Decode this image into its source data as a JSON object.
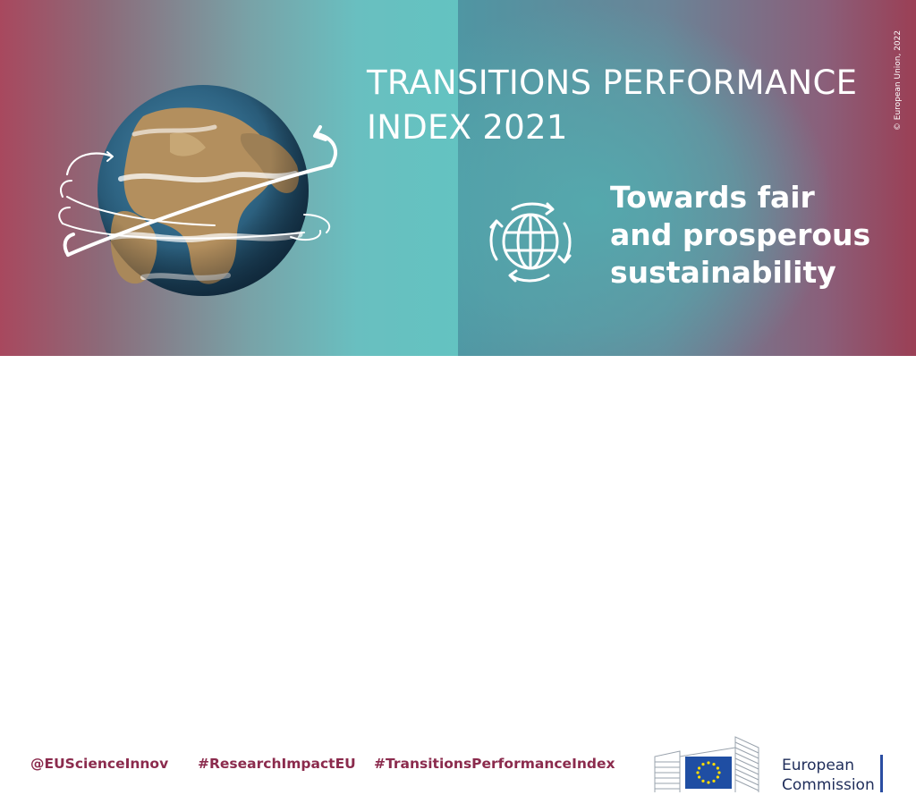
{
  "title": {
    "line1": "TRANSITIONS PERFORMANCE",
    "line2": "INDEX 2021"
  },
  "tagline": {
    "line1": "Towards fair",
    "line2": "and prosperous",
    "line3": "sustainability"
  },
  "copyright": "© European Union, 2022",
  "footer": {
    "handles": [
      "@EUScienceInnov",
      "#ResearchImpactEU",
      "#TransitionsPerformanceIndex"
    ],
    "org_name": [
      "European",
      "Commission"
    ]
  },
  "colors": {
    "handle_text": "#8b2b4d",
    "brand_blue": "#1f2d5a",
    "eu_flag_blue": "#1f4ea3",
    "eu_star_yellow": "#ffdd00"
  },
  "icons": [
    "earth-globe-icon",
    "globe-arrows-icon",
    "eu-flag-icon",
    "berlaymont-building-icon"
  ]
}
